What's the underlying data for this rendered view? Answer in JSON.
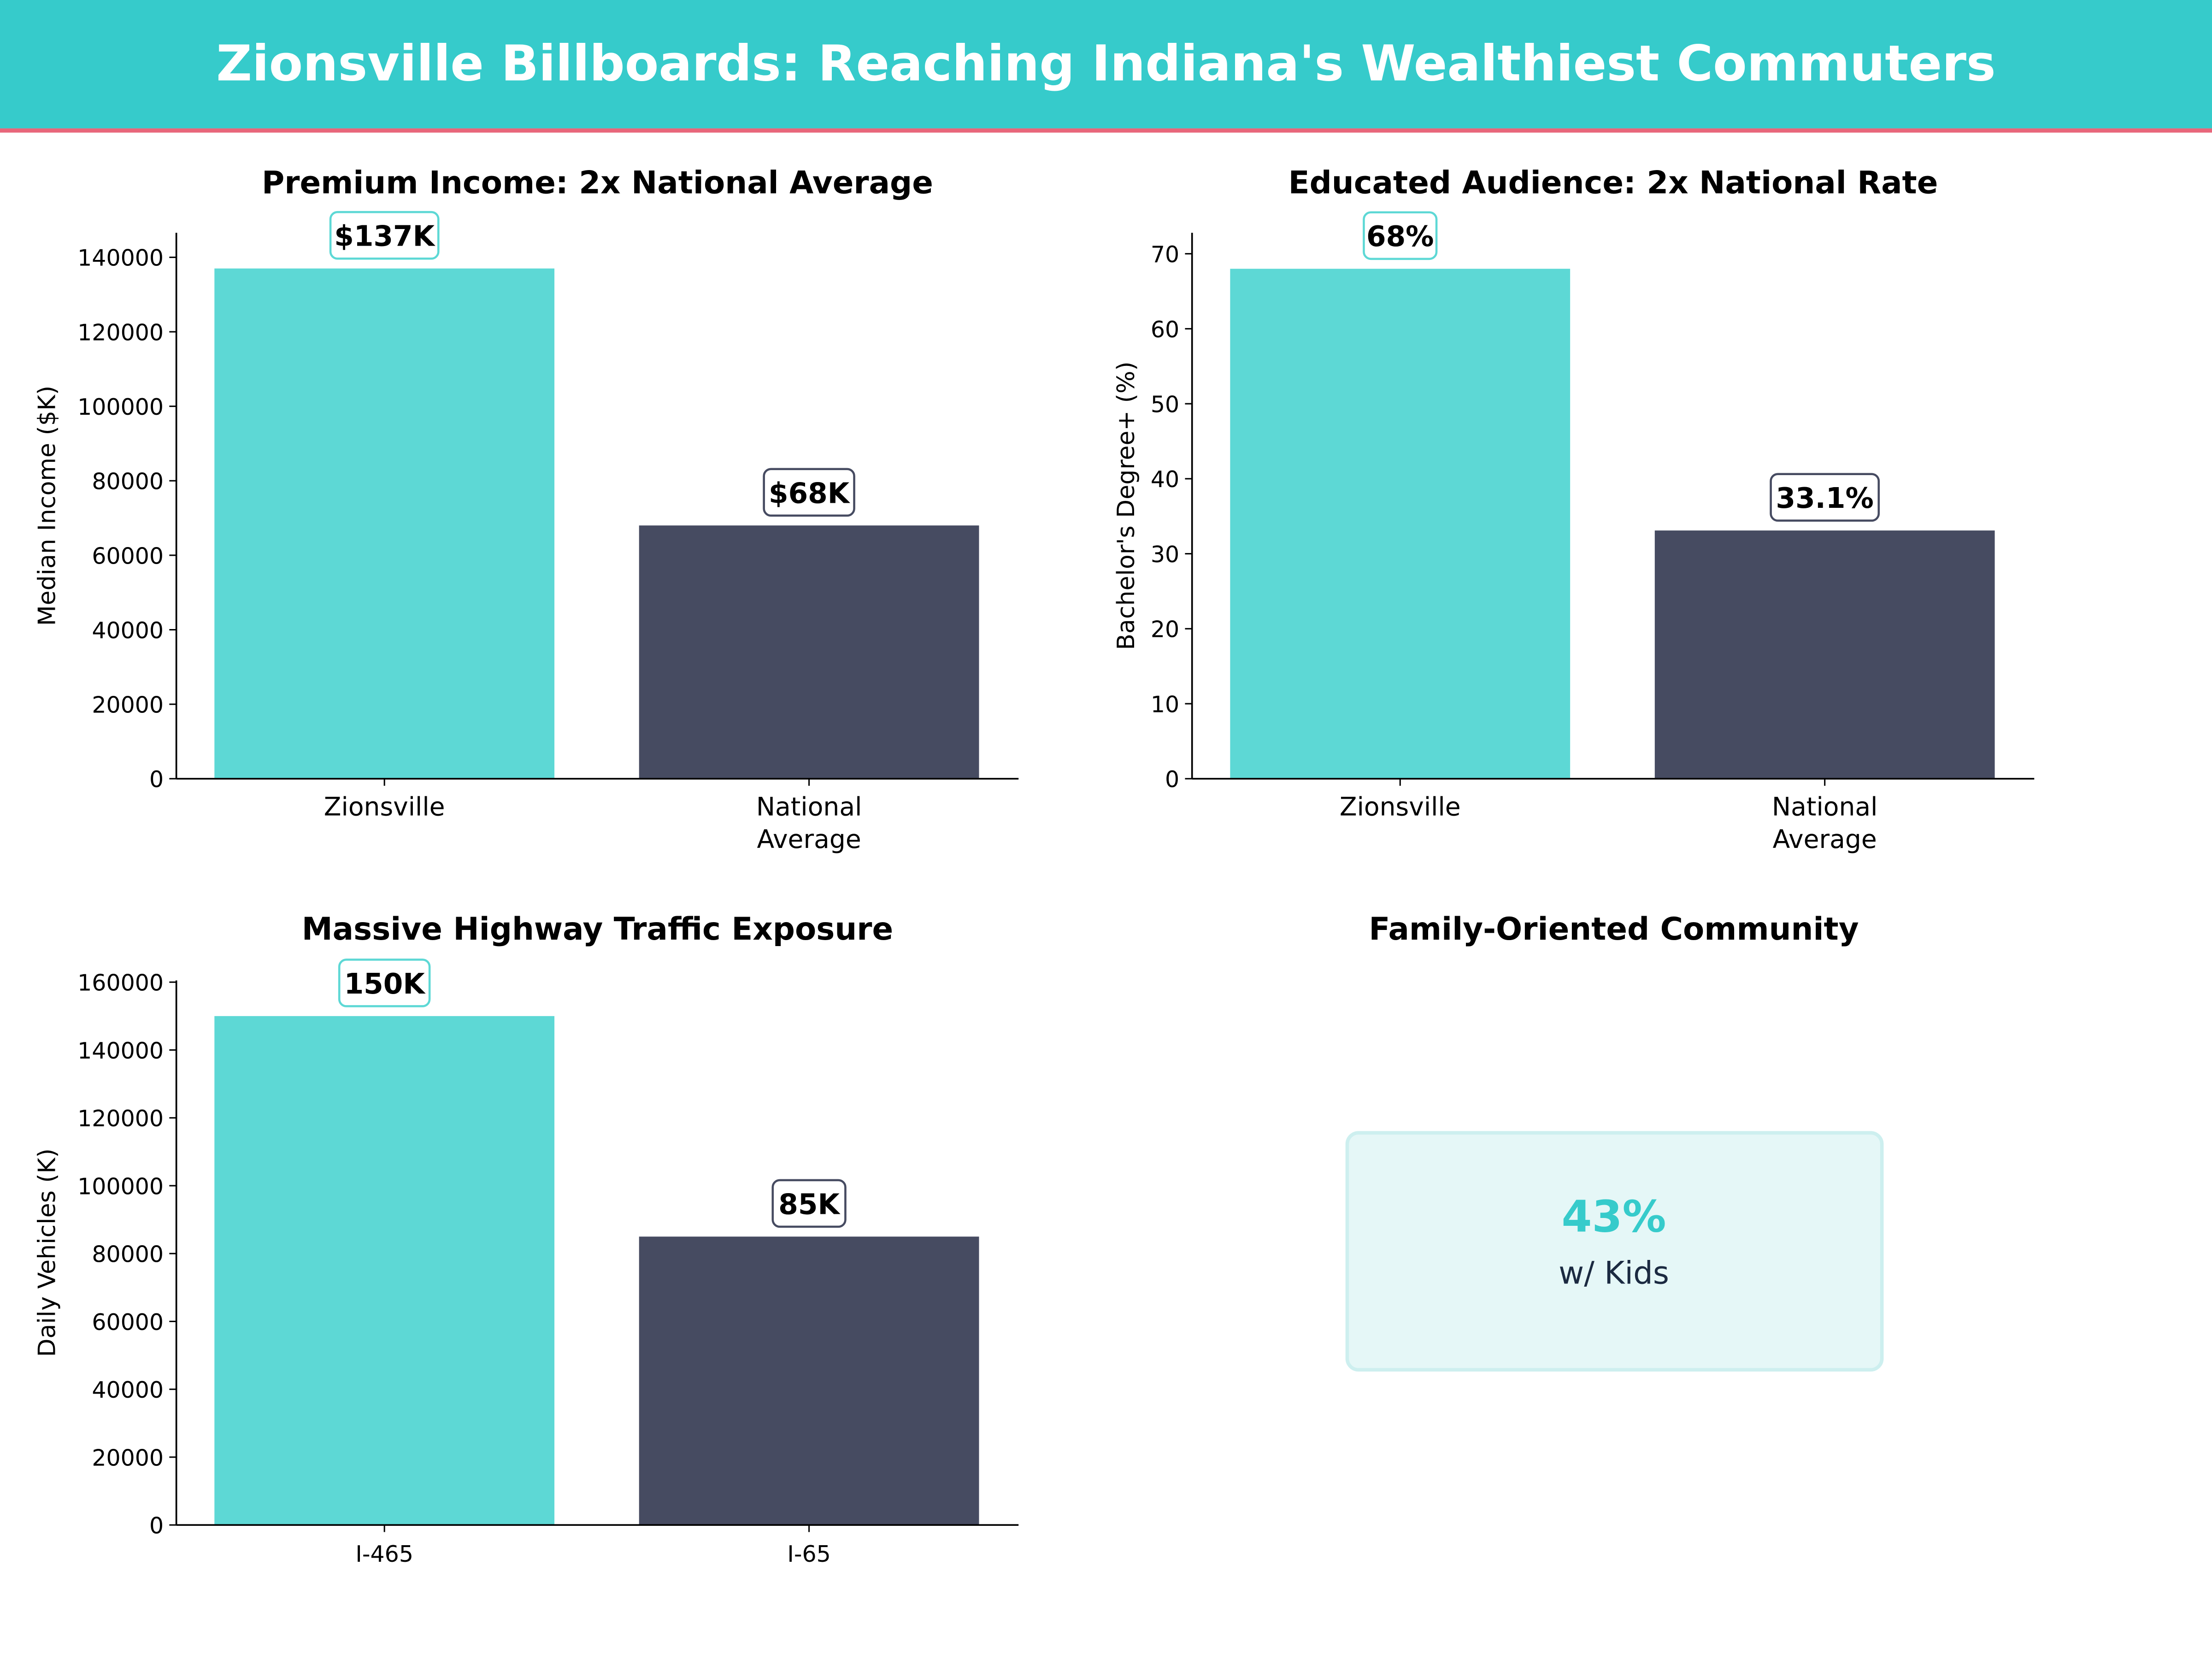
{
  "header": {
    "title": "Zionsville Billboards: Reaching Indiana's Wealthiest Commuters",
    "background_color": "#36CBCB",
    "accent_line_color": "#E8667A"
  },
  "colors": {
    "primary": "#5DD8D5",
    "secondary": "#464B61"
  },
  "chart_data": [
    {
      "type": "bar",
      "title": "Premium Income: 2x National Average",
      "ylabel": "Median Income ($K)",
      "xlabel": "",
      "categories": [
        "Zionsville",
        "National\nAverage"
      ],
      "values": [
        137000,
        68000
      ],
      "data_labels": [
        "$137K",
        "$68K"
      ],
      "yticks": [
        0,
        20000,
        40000,
        60000,
        80000,
        100000,
        120000,
        140000
      ],
      "ylim": [
        0,
        146590
      ],
      "grid": false
    },
    {
      "type": "bar",
      "title": "Educated Audience: 2x National Rate",
      "ylabel": "Bachelor's Degree+ (%)",
      "xlabel": "",
      "categories": [
        "Zionsville",
        "National\nAverage"
      ],
      "values": [
        68,
        33.1
      ],
      "data_labels": [
        "68%",
        "33.1%"
      ],
      "yticks": [
        0,
        10,
        20,
        30,
        40,
        50,
        60,
        70
      ],
      "ylim": [
        0,
        72.8
      ],
      "grid": false
    },
    {
      "type": "bar",
      "title": "Massive Highway Traffic Exposure",
      "ylabel": "Daily Vehicles (K)",
      "xlabel": "",
      "categories": [
        "I-465",
        "I-65"
      ],
      "values": [
        150000,
        85000
      ],
      "data_labels": [
        "150K",
        "85K"
      ],
      "yticks": [
        0,
        20000,
        40000,
        60000,
        80000,
        100000,
        120000,
        140000,
        160000
      ],
      "ylim": [
        0,
        160500
      ],
      "grid": false
    }
  ],
  "stat_panel": {
    "title": "Family-Oriented Community",
    "value": "43%",
    "label": "w/ Kids"
  }
}
